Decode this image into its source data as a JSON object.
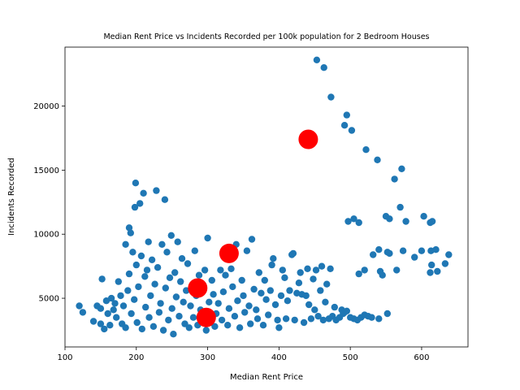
{
  "chart_data": {
    "type": "scatter",
    "title": "Median Rent Price vs Incidents Recorded per 100k population for 2 Bedroom Houses",
    "xlabel": "Median Rent Price",
    "ylabel": "Incidents Recorded",
    "xlim": [
      100,
      665
    ],
    "ylim": [
      1200,
      24600
    ],
    "xticks": [
      100,
      200,
      300,
      400,
      500,
      600
    ],
    "yticks": [
      5000,
      10000,
      15000,
      20000
    ],
    "grid": false,
    "colors": {
      "points": "#1f77b4",
      "highlight": "#ff0000"
    },
    "series": [
      {
        "marker": "small-circle",
        "points": [
          [
            120,
            4400
          ],
          [
            125,
            3900
          ],
          [
            140,
            3200
          ],
          [
            145,
            4400
          ],
          [
            150,
            4200
          ],
          [
            150,
            3000
          ],
          [
            152,
            6500
          ],
          [
            155,
            2600
          ],
          [
            158,
            4800
          ],
          [
            160,
            3800
          ],
          [
            163,
            2900
          ],
          [
            165,
            5000
          ],
          [
            168,
            4100
          ],
          [
            170,
            4600
          ],
          [
            172,
            3500
          ],
          [
            175,
            6300
          ],
          [
            178,
            5200
          ],
          [
            180,
            3000
          ],
          [
            182,
            4400
          ],
          [
            185,
            2700
          ],
          [
            185,
            9200
          ],
          [
            188,
            5600
          ],
          [
            190,
            10500
          ],
          [
            190,
            6900
          ],
          [
            192,
            10100
          ],
          [
            193,
            3800
          ],
          [
            195,
            8600
          ],
          [
            197,
            4900
          ],
          [
            198,
            12100
          ],
          [
            199,
            14000
          ],
          [
            200,
            7600
          ],
          [
            201,
            3100
          ],
          [
            203,
            5900
          ],
          [
            205,
            12400
          ],
          [
            207,
            8300
          ],
          [
            208,
            2600
          ],
          [
            210,
            13200
          ],
          [
            212,
            6700
          ],
          [
            213,
            4300
          ],
          [
            215,
            7200
          ],
          [
            217,
            9400
          ],
          [
            218,
            3500
          ],
          [
            220,
            5200
          ],
          [
            222,
            8000
          ],
          [
            224,
            2800
          ],
          [
            226,
            6100
          ],
          [
            228,
            13400
          ],
          [
            230,
            7400
          ],
          [
            232,
            3900
          ],
          [
            234,
            4600
          ],
          [
            236,
            9200
          ],
          [
            238,
            2500
          ],
          [
            240,
            12700
          ],
          [
            241,
            5800
          ],
          [
            243,
            8600
          ],
          [
            245,
            3300
          ],
          [
            247,
            6600
          ],
          [
            249,
            9900
          ],
          [
            250,
            4200
          ],
          [
            252,
            2200
          ],
          [
            254,
            7000
          ],
          [
            256,
            5100
          ],
          [
            258,
            9400
          ],
          [
            260,
            3600
          ],
          [
            262,
            6300
          ],
          [
            264,
            8100
          ],
          [
            266,
            4700
          ],
          [
            268,
            3000
          ],
          [
            270,
            5600
          ],
          [
            272,
            7700
          ],
          [
            274,
            2700
          ],
          [
            276,
            4400
          ],
          [
            278,
            6000
          ],
          [
            280,
            3500
          ],
          [
            282,
            8700
          ],
          [
            284,
            5200
          ],
          [
            286,
            2900
          ],
          [
            288,
            6800
          ],
          [
            290,
            4100
          ],
          [
            292,
            3300
          ],
          [
            294,
            5900
          ],
          [
            296,
            7200
          ],
          [
            298,
            2500
          ],
          [
            300,
            9700
          ],
          [
            302,
            4700
          ],
          [
            304,
            3100
          ],
          [
            306,
            6400
          ],
          [
            308,
            5300
          ],
          [
            310,
            2800
          ],
          [
            312,
            3800
          ],
          [
            315,
            4600
          ],
          [
            318,
            7200
          ],
          [
            320,
            3300
          ],
          [
            322,
            5500
          ],
          [
            325,
            6800
          ],
          [
            328,
            2900
          ],
          [
            330,
            4200
          ],
          [
            333,
            7300
          ],
          [
            335,
            5900
          ],
          [
            338,
            3600
          ],
          [
            340,
            9200
          ],
          [
            342,
            4800
          ],
          [
            345,
            2700
          ],
          [
            348,
            6400
          ],
          [
            350,
            5200
          ],
          [
            352,
            3900
          ],
          [
            355,
            8700
          ],
          [
            358,
            4400
          ],
          [
            360,
            3000
          ],
          [
            362,
            9600
          ],
          [
            365,
            5700
          ],
          [
            368,
            4100
          ],
          [
            370,
            3400
          ],
          [
            372,
            7000
          ],
          [
            375,
            5400
          ],
          [
            378,
            2900
          ],
          [
            380,
            6400
          ],
          [
            382,
            4900
          ],
          [
            385,
            3700
          ],
          [
            388,
            5600
          ],
          [
            390,
            7600
          ],
          [
            392,
            8100
          ],
          [
            395,
            4500
          ],
          [
            398,
            3300
          ],
          [
            400,
            2700
          ],
          [
            403,
            5200
          ],
          [
            405,
            7200
          ],
          [
            408,
            6600
          ],
          [
            410,
            3400
          ],
          [
            412,
            4800
          ],
          [
            415,
            5600
          ],
          [
            418,
            8400
          ],
          [
            420,
            8500
          ],
          [
            422,
            3300
          ],
          [
            425,
            5400
          ],
          [
            428,
            6200
          ],
          [
            430,
            7000
          ],
          [
            432,
            5300
          ],
          [
            435,
            3100
          ],
          [
            438,
            5200
          ],
          [
            440,
            7300
          ],
          [
            442,
            4500
          ],
          [
            445,
            3400
          ],
          [
            448,
            6500
          ],
          [
            450,
            4100
          ],
          [
            452,
            7200
          ],
          [
            455,
            3600
          ],
          [
            458,
            5600
          ],
          [
            460,
            7500
          ],
          [
            462,
            3300
          ],
          [
            465,
            4700
          ],
          [
            467,
            6100
          ],
          [
            470,
            3400
          ],
          [
            472,
            7300
          ],
          [
            475,
            3600
          ],
          [
            478,
            4300
          ],
          [
            480,
            3300
          ],
          [
            485,
            3500
          ],
          [
            488,
            4100
          ],
          [
            490,
            3800
          ],
          [
            492,
            3900
          ],
          [
            495,
            4000
          ],
          [
            500,
            3500
          ],
          [
            505,
            3400
          ],
          [
            510,
            3300
          ],
          [
            515,
            3500
          ],
          [
            520,
            3700
          ],
          [
            525,
            3600
          ],
          [
            530,
            3500
          ],
          [
            540,
            3400
          ],
          [
            552,
            3800
          ],
          [
            453,
            23600
          ],
          [
            463,
            23000
          ],
          [
            473,
            20700
          ],
          [
            495,
            19300
          ],
          [
            492,
            18500
          ],
          [
            502,
            18100
          ],
          [
            522,
            16600
          ],
          [
            538,
            15800
          ],
          [
            572,
            15100
          ],
          [
            562,
            14300
          ],
          [
            570,
            12100
          ],
          [
            550,
            11400
          ],
          [
            555,
            11200
          ],
          [
            578,
            11000
          ],
          [
            603,
            11400
          ],
          [
            612,
            10900
          ],
          [
            615,
            11000
          ],
          [
            497,
            11000
          ],
          [
            505,
            11200
          ],
          [
            512,
            10900
          ],
          [
            532,
            8400
          ],
          [
            540,
            8800
          ],
          [
            552,
            8600
          ],
          [
            555,
            8500
          ],
          [
            574,
            8700
          ],
          [
            590,
            8200
          ],
          [
            600,
            8700
          ],
          [
            613,
            8700
          ],
          [
            620,
            8800
          ],
          [
            638,
            8400
          ],
          [
            512,
            6900
          ],
          [
            520,
            7200
          ],
          [
            542,
            7100
          ],
          [
            545,
            6800
          ],
          [
            565,
            7200
          ],
          [
            612,
            7000
          ],
          [
            614,
            7600
          ],
          [
            622,
            7100
          ],
          [
            633,
            7700
          ]
        ]
      },
      {
        "marker": "large-circle",
        "points": [
          [
            441,
            17400
          ],
          [
            330,
            8500
          ],
          [
            286,
            5800
          ],
          [
            298,
            3500
          ]
        ]
      }
    ]
  }
}
